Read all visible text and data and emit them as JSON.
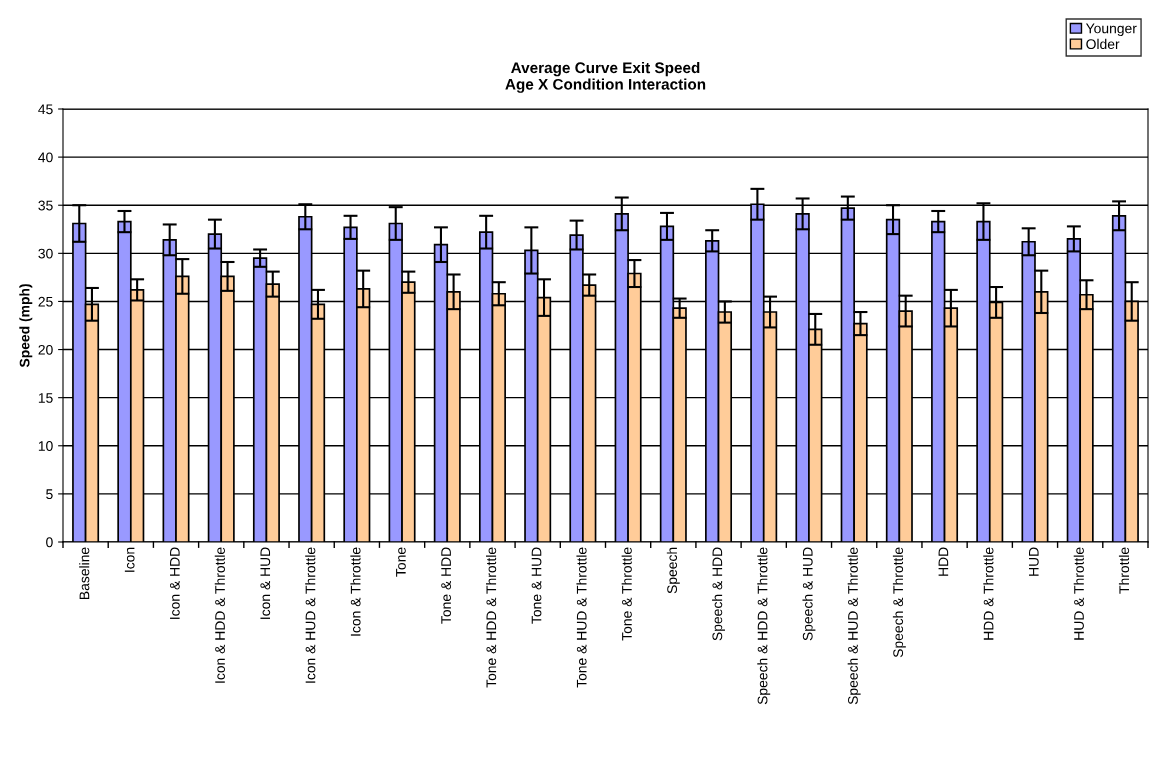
{
  "chart_data": {
    "type": "bar",
    "title": "Average Curve Exit Speed\nAge X Condition Interaction",
    "ylabel": "Speed (mph)",
    "categories": [
      "Baseline",
      "Icon",
      "Icon & HDD",
      "Icon & HDD & Throttle",
      "Icon & HUD",
      "Icon & HUD & Throttle",
      "Icon & Throttle",
      "Tone",
      "Tone & HDD",
      "Tone & HDD & Throttle",
      "Tone & HUD",
      "Tone & HUD & Throttle",
      "Tone & Throttle",
      "Speech",
      "Speech & HDD",
      "Speech & HDD & Throttle",
      "Speech & HUD",
      "Speech & HUD & Throttle",
      "Speech & Throttle",
      "HDD",
      "HDD & Throttle",
      "HUD",
      "HUD & Throttle",
      "Throttle"
    ],
    "series": [
      {
        "name": "Younger",
        "color": "#9999ff",
        "values": [
          33.1,
          33.3,
          31.4,
          32.0,
          29.5,
          33.8,
          32.7,
          33.1,
          30.9,
          32.2,
          30.3,
          31.9,
          34.1,
          32.8,
          31.3,
          35.1,
          34.1,
          34.7,
          33.5,
          33.3,
          33.3,
          31.2,
          31.5,
          33.9
        ],
        "errors": [
          1.9,
          1.1,
          1.6,
          1.5,
          0.9,
          1.3,
          1.2,
          1.7,
          1.8,
          1.7,
          2.4,
          1.5,
          1.7,
          1.4,
          1.1,
          1.6,
          1.6,
          1.2,
          1.5,
          1.1,
          1.9,
          1.4,
          1.3,
          1.5
        ]
      },
      {
        "name": "Older",
        "color": "#ffcc99",
        "values": [
          24.7,
          26.2,
          27.6,
          27.6,
          26.8,
          24.7,
          26.3,
          27.0,
          26.0,
          25.8,
          25.4,
          26.7,
          27.9,
          24.3,
          23.9,
          23.9,
          22.1,
          22.7,
          24.0,
          24.3,
          24.9,
          26.0,
          25.7,
          25.0
        ],
        "errors": [
          1.7,
          1.1,
          1.8,
          1.5,
          1.3,
          1.5,
          1.9,
          1.1,
          1.8,
          1.2,
          1.9,
          1.1,
          1.4,
          1.0,
          1.1,
          1.6,
          1.6,
          1.2,
          1.6,
          1.9,
          1.6,
          2.2,
          1.5,
          2.0
        ]
      }
    ],
    "ylim": [
      0,
      45
    ],
    "yticks": [
      0,
      5,
      10,
      15,
      20,
      25,
      30,
      35,
      40,
      45
    ],
    "grid": "y",
    "legend": "top right"
  }
}
